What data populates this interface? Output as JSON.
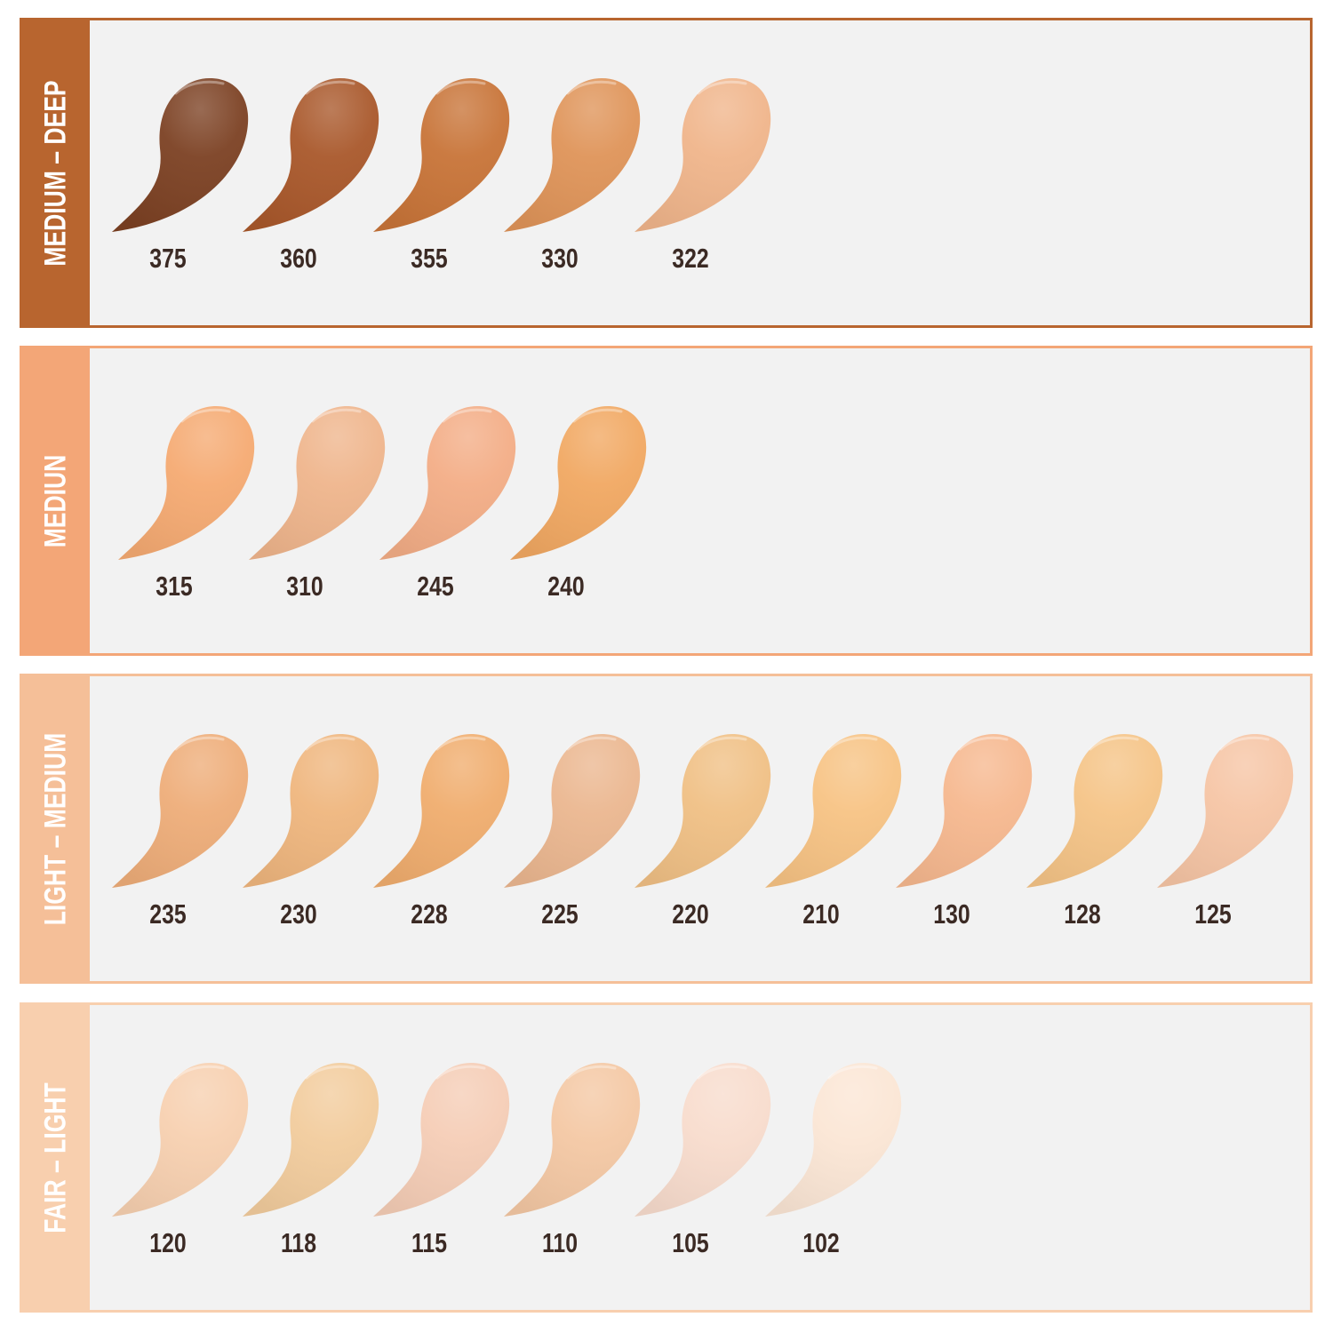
{
  "groups": [
    {
      "label": "MEDIUM – DEEP",
      "color": "#b8652f",
      "shades": [
        {
          "code": "375",
          "color": "#7c4123"
        },
        {
          "code": "360",
          "color": "#a9582b"
        },
        {
          "code": "355",
          "color": "#c87438"
        },
        {
          "code": "330",
          "color": "#df9459"
        },
        {
          "code": "322",
          "color": "#f0b58b"
        }
      ]
    },
    {
      "label": "MEDIUN",
      "color": "#f3a677",
      "shades": [
        {
          "code": "315",
          "color": "#f5aa72"
        },
        {
          "code": "310",
          "color": "#efb58c"
        },
        {
          "code": "245",
          "color": "#f3ad86"
        },
        {
          "code": "240",
          "color": "#f1a862"
        }
      ]
    },
    {
      "label": "LIGHT – MEDIUM",
      "color": "#f5bf98",
      "shades": [
        {
          "code": "235",
          "color": "#eead79"
        },
        {
          "code": "230",
          "color": "#efb67e"
        },
        {
          "code": "228",
          "color": "#f0ad6e"
        },
        {
          "code": "225",
          "color": "#ebb790"
        },
        {
          "code": "220",
          "color": "#f0c085"
        },
        {
          "code": "210",
          "color": "#f7c384"
        },
        {
          "code": "130",
          "color": "#f6b88f"
        },
        {
          "code": "128",
          "color": "#f5c487"
        },
        {
          "code": "125",
          "color": "#f6c5a5"
        }
      ]
    },
    {
      "label": "FAIR – LIGHT",
      "color": "#f8cfae",
      "shades": [
        {
          "code": "120",
          "color": "#f7d0b0"
        },
        {
          "code": "118",
          "color": "#f2cc9d"
        },
        {
          "code": "115",
          "color": "#f5cdb6"
        },
        {
          "code": "110",
          "color": "#f4c8a4"
        },
        {
          "code": "105",
          "color": "#f8dccd"
        },
        {
          "code": "102",
          "color": "#fbe6d5"
        }
      ]
    }
  ]
}
